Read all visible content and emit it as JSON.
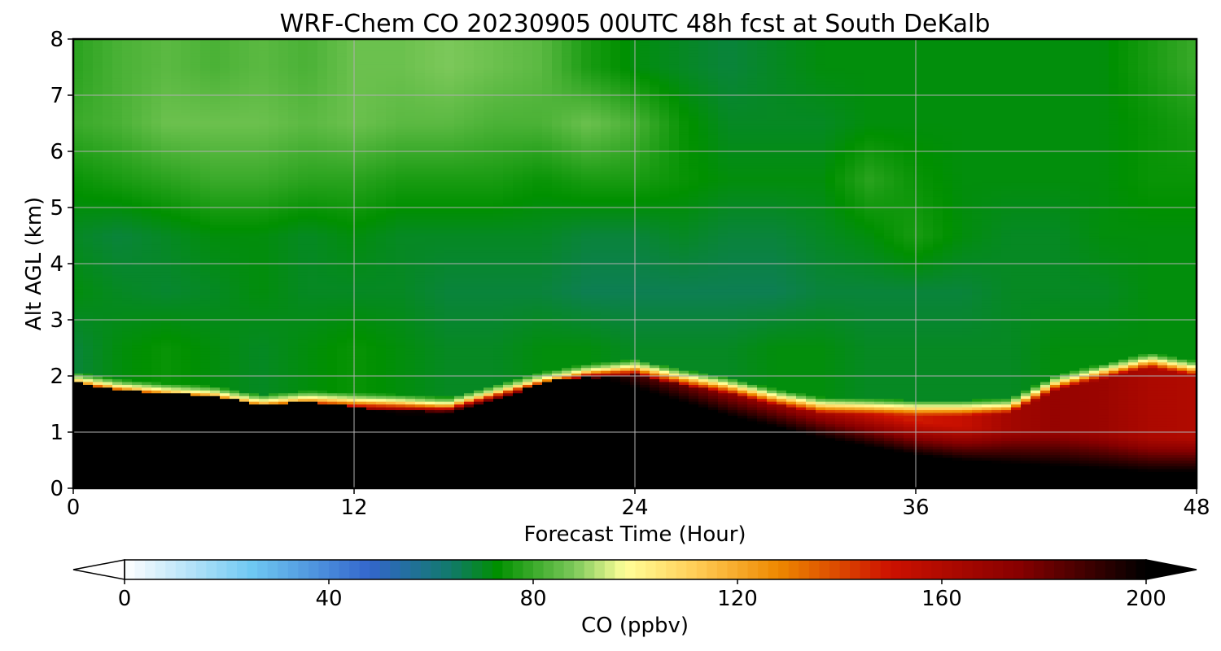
{
  "chart_data": {
    "type": "heatmap",
    "title": "WRF-Chem CO  20230905 00UTC 48h fcst at South DeKalb",
    "xlabel": "Forecast Time (Hour)",
    "ylabel": "Alt AGL (km)",
    "xlim": [
      0,
      48
    ],
    "ylim": [
      0,
      8
    ],
    "x_ticks": [
      0,
      12,
      24,
      36,
      48
    ],
    "y_ticks": [
      0,
      1,
      2,
      3,
      4,
      5,
      6,
      7,
      8
    ],
    "grid": true,
    "colorbar": {
      "label": "CO  (ppbv)",
      "ticks": [
        0,
        40,
        80,
        120,
        160,
        200
      ],
      "range": [
        0,
        200
      ],
      "extend": "both",
      "orientation": "horizontal",
      "colors": [
        {
          "v": 0,
          "c": "#ffffff"
        },
        {
          "v": 25,
          "c": "#6ec8f2"
        },
        {
          "v": 48,
          "c": "#3366cc"
        },
        {
          "v": 64,
          "c": "#117a6a"
        },
        {
          "v": 73,
          "c": "#009000"
        },
        {
          "v": 88,
          "c": "#7cc85a"
        },
        {
          "v": 98,
          "c": "#ffff99"
        },
        {
          "v": 112,
          "c": "#ffcc55"
        },
        {
          "v": 128,
          "c": "#ee8800"
        },
        {
          "v": 150,
          "c": "#cc1100"
        },
        {
          "v": 175,
          "c": "#880000"
        },
        {
          "v": 200,
          "c": "#000000"
        }
      ]
    },
    "x": [
      0,
      2,
      4,
      6,
      8,
      10,
      12,
      14,
      16,
      18,
      20,
      22,
      24,
      26,
      28,
      30,
      32,
      34,
      36,
      38,
      40,
      42,
      44,
      46,
      48
    ],
    "boundary_layer_top_km": [
      1.95,
      1.82,
      1.75,
      1.7,
      1.55,
      1.62,
      1.58,
      1.55,
      1.5,
      1.72,
      1.95,
      2.1,
      2.18,
      2.0,
      1.85,
      1.65,
      1.5,
      1.48,
      1.45,
      1.45,
      1.48,
      1.9,
      2.1,
      2.3,
      2.15
    ],
    "surface_black_layer_top_km": [
      1.9,
      1.75,
      1.7,
      1.65,
      1.5,
      1.55,
      1.45,
      1.3,
      1.25,
      1.55,
      1.9,
      2.0,
      1.8,
      1.55,
      1.3,
      1.1,
      0.9,
      0.75,
      0.6,
      0.5,
      0.45,
      0.4,
      0.35,
      0.3,
      0.3
    ],
    "boundary_layer_co_ppbv": [
      190,
      188,
      185,
      180,
      175,
      172,
      170,
      175,
      198,
      200,
      200,
      198,
      165,
      160,
      158,
      155,
      152,
      150,
      148,
      152,
      165,
      170,
      168,
      162,
      160
    ],
    "free_troposphere_co_ppbv": {
      "z_km": [
        2.5,
        3.5,
        4.5,
        5.5,
        6.5,
        7.5
      ],
      "values": [
        [
          68,
          72,
          70,
          74,
          80,
          78
        ],
        [
          72,
          70,
          68,
          76,
          82,
          82
        ],
        [
          74,
          69,
          70,
          78,
          86,
          84
        ],
        [
          72,
          70,
          72,
          80,
          86,
          82
        ],
        [
          70,
          72,
          72,
          80,
          86,
          84
        ],
        [
          72,
          70,
          70,
          78,
          84,
          82
        ],
        [
          74,
          70,
          72,
          78,
          86,
          86
        ],
        [
          72,
          70,
          70,
          76,
          84,
          86
        ],
        [
          70,
          68,
          70,
          76,
          84,
          88
        ],
        [
          70,
          68,
          70,
          76,
          82,
          86
        ],
        [
          72,
          68,
          70,
          74,
          82,
          84
        ],
        [
          72,
          66,
          68,
          76,
          86,
          76
        ],
        [
          70,
          66,
          68,
          76,
          82,
          72
        ],
        [
          70,
          66,
          70,
          74,
          74,
          70
        ],
        [
          70,
          66,
          68,
          72,
          70,
          68
        ],
        [
          72,
          66,
          68,
          72,
          70,
          70
        ],
        [
          72,
          68,
          70,
          72,
          70,
          72
        ],
        [
          70,
          68,
          72,
          78,
          72,
          72
        ],
        [
          70,
          68,
          76,
          74,
          72,
          72
        ],
        [
          70,
          68,
          72,
          72,
          72,
          72
        ],
        [
          70,
          70,
          70,
          72,
          72,
          72
        ],
        [
          72,
          70,
          70,
          72,
          72,
          72
        ],
        [
          72,
          70,
          72,
          72,
          72,
          72
        ],
        [
          72,
          72,
          72,
          74,
          74,
          76
        ],
        [
          72,
          72,
          72,
          74,
          76,
          80
        ]
      ]
    }
  }
}
